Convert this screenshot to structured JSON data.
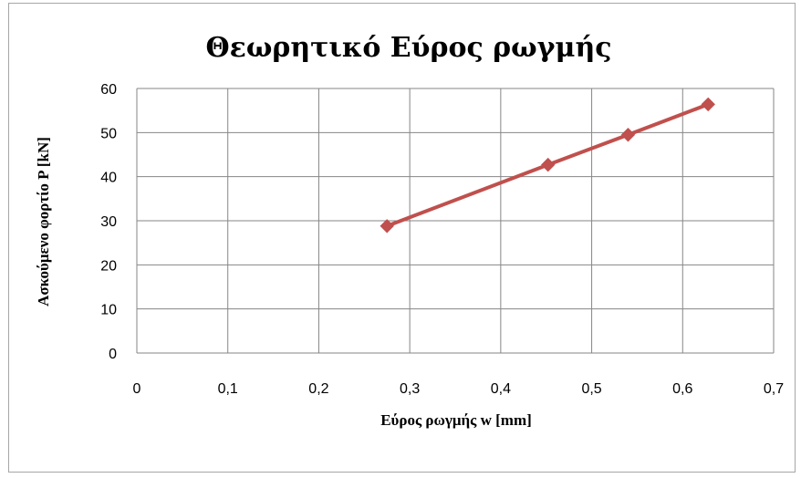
{
  "chart_data": {
    "type": "line",
    "title": "Θεωρητικό Εύρος ρωγμής",
    "xlabel": "Εύρος ρωγμής  w [mm]",
    "ylabel": "Ασκούμενο φορτίο P [kN]",
    "xlim": [
      0,
      0.7
    ],
    "ylim": [
      0,
      60
    ],
    "xticks": [
      "0",
      "0,1",
      "0,2",
      "0,3",
      "0,4",
      "0,5",
      "0,6",
      "0,7"
    ],
    "yticks": [
      "0",
      "10",
      "20",
      "30",
      "40",
      "50",
      "60"
    ],
    "grid": true,
    "series": [
      {
        "x": [
          0.275,
          0.452,
          0.54,
          0.628
        ],
        "y": [
          28.8,
          42.7,
          49.5,
          56.4
        ],
        "color": "#c0504d",
        "marker": "diamond"
      }
    ]
  },
  "colors": {
    "series": "#c0504d",
    "grid": "#868686",
    "frame": "#a6a6a6"
  }
}
